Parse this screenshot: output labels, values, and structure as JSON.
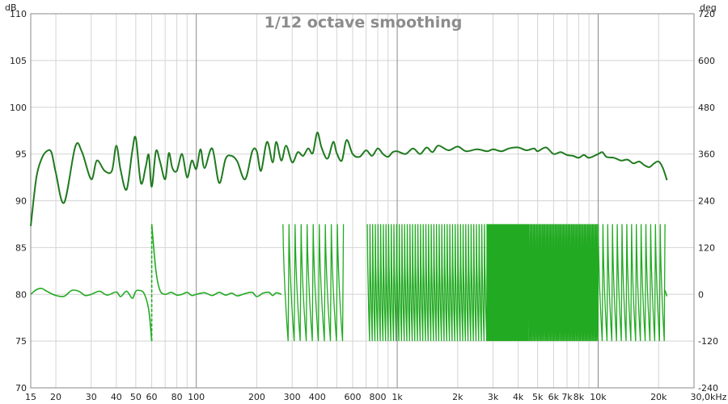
{
  "chart_data": {
    "type": "line",
    "title": "1/12 octave smoothing",
    "x_scale": "log",
    "xlim": [
      15,
      30000
    ],
    "ylim_left": [
      70,
      110
    ],
    "ylim_right": [
      -240,
      720
    ],
    "left_unit": "dB",
    "right_unit": "deg",
    "grid": true,
    "y_ticks_left": [
      70,
      75,
      80,
      85,
      90,
      95,
      100,
      105,
      110
    ],
    "y_ticks_right": [
      -240,
      -120,
      0,
      120,
      240,
      360,
      480,
      600,
      720
    ],
    "x_ticks": [
      {
        "v": 15,
        "label": "15"
      },
      {
        "v": 20,
        "label": "20"
      },
      {
        "v": 30,
        "label": "30"
      },
      {
        "v": 40,
        "label": "40"
      },
      {
        "v": 50,
        "label": "50"
      },
      {
        "v": 60,
        "label": "60"
      },
      {
        "v": 80,
        "label": "80"
      },
      {
        "v": 100,
        "label": "100"
      },
      {
        "v": 200,
        "label": "200"
      },
      {
        "v": 300,
        "label": "300"
      },
      {
        "v": 400,
        "label": "400"
      },
      {
        "v": 600,
        "label": "600"
      },
      {
        "v": 800,
        "label": "800"
      },
      {
        "v": 1000,
        "label": "1k"
      },
      {
        "v": 2000,
        "label": "2k"
      },
      {
        "v": 3000,
        "label": "3k"
      },
      {
        "v": 4000,
        "label": "4k"
      },
      {
        "v": 5000,
        "label": "5k"
      },
      {
        "v": 6000,
        "label": "6k"
      },
      {
        "v": 7000,
        "label": "7k"
      },
      {
        "v": 8000,
        "label": "8k"
      },
      {
        "v": 10000,
        "label": "10k"
      },
      {
        "v": 20000,
        "label": "20k"
      },
      {
        "v": 30000,
        "label": "30,0kHz"
      }
    ],
    "colors": {
      "magnitude": "#1f7a1f",
      "phase": "#22aa22",
      "grid_minor": "#d4d4d4",
      "grid_major": "#8a8a8a",
      "title": "#8c8c8c"
    },
    "series": [
      {
        "axis": "left",
        "x": [
          15,
          16,
          17,
          18,
          19,
          20,
          22,
          25,
          27,
          30,
          32,
          35,
          38,
          40,
          42,
          45,
          48,
          50,
          53,
          56,
          58,
          60,
          63,
          66,
          70,
          73,
          76,
          80,
          85,
          90,
          95,
          100,
          105,
          110,
          120,
          130,
          140,
          150,
          160,
          175,
          190,
          200,
          210,
          225,
          240,
          250,
          265,
          280,
          300,
          320,
          340,
          360,
          380,
          400,
          420,
          450,
          480,
          500,
          530,
          560,
          600,
          650,
          700,
          750,
          800,
          850,
          900,
          950,
          1000,
          1100,
          1200,
          1300,
          1400,
          1500,
          1600,
          1800,
          2000,
          2200,
          2500,
          2800,
          3000,
          3300,
          3600,
          4000,
          4400,
          4800,
          5000,
          5500,
          6000,
          6500,
          7000,
          7500,
          8000,
          8500,
          9000,
          10000,
          10500,
          11000,
          12000,
          13000,
          14000,
          15000,
          16000,
          17000,
          18000,
          19000,
          20000,
          21000,
          22000
        ],
        "values": [
          87.3,
          92.5,
          94.5,
          95.3,
          95.2,
          93,
          89.8,
          95.8,
          95.2,
          92.3,
          94.3,
          93.2,
          93.2,
          95.9,
          93.3,
          91.2,
          95.3,
          96.7,
          91.9,
          93.6,
          94.9,
          91.5,
          95.3,
          94.2,
          92.3,
          95.1,
          93.5,
          93.2,
          95,
          92.5,
          94.3,
          93.4,
          95.5,
          93.5,
          95.6,
          91.9,
          94.5,
          94.8,
          94.2,
          92.3,
          95.3,
          95.3,
          93.2,
          96.3,
          94.1,
          96.3,
          94.3,
          95.9,
          94.1,
          95.2,
          94.8,
          95.6,
          95.1,
          97.3,
          95.7,
          94.5,
          96.3,
          95.1,
          94.3,
          96.5,
          95,
          94.7,
          95.4,
          94.8,
          95.6,
          95,
          94.7,
          95.2,
          95.3,
          95.0,
          95.6,
          95.0,
          95.7,
          95.2,
          95.9,
          95.4,
          95.8,
          95.3,
          95.5,
          95.3,
          95.5,
          95.3,
          95.6,
          95.7,
          95.4,
          95.6,
          95.3,
          95.7,
          95.0,
          95.2,
          94.9,
          94.8,
          94.6,
          94.9,
          94.6,
          95.0,
          95.2,
          94.7,
          94.6,
          94.3,
          94.4,
          94.0,
          94.2,
          93.8,
          93.6,
          94.0,
          94.2,
          93.5,
          92.2
        ]
      },
      {
        "axis": "right",
        "x": [
          15,
          16,
          17,
          18,
          20,
          22,
          24,
          26,
          28,
          30,
          33,
          36,
          40,
          42,
          45,
          48,
          50,
          52,
          55,
          58,
          60,
          60.01,
          63,
          66,
          70,
          75,
          80,
          85,
          90,
          95,
          100,
          110,
          120,
          130,
          140,
          150,
          160,
          175,
          190,
          200,
          215,
          230,
          240,
          250,
          265
        ],
        "values": [
          0,
          12,
          15,
          8,
          -3,
          -5,
          10,
          8,
          -3,
          0,
          8,
          -2,
          6,
          -6,
          8,
          -10,
          8,
          10,
          2,
          -40,
          -120,
          180,
          60,
          10,
          0,
          5,
          -2,
          0,
          5,
          -3,
          0,
          4,
          -3,
          5,
          -2,
          3,
          -4,
          2,
          5,
          -6,
          3,
          5,
          -3,
          4,
          0
        ]
      },
      {
        "axis": "right",
        "style": "wrap-bands",
        "bands": [
          {
            "from": 270,
            "to": 540,
            "wraps": 10
          },
          {
            "from": 710,
            "to": 2800,
            "wraps": 45
          },
          {
            "from": 2800,
            "to": 4500,
            "wraps": 90
          },
          {
            "from": 4500,
            "to": 10000,
            "wraps": 60
          },
          {
            "from": 10000,
            "to": 21500,
            "wraps": 14
          }
        ],
        "min": -120,
        "max": 180
      }
    ]
  }
}
